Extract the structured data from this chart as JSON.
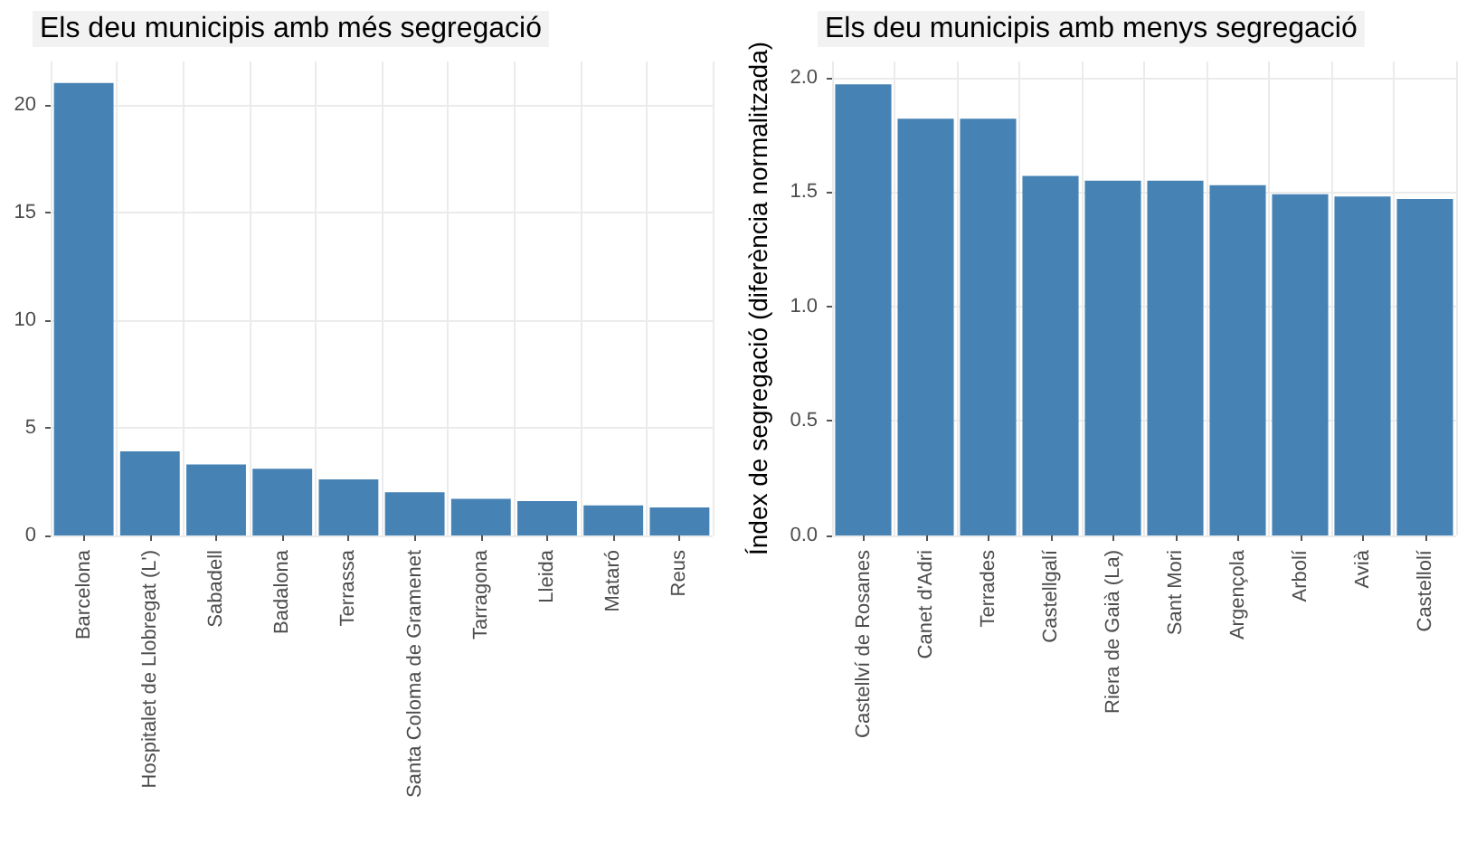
{
  "chart_data": [
    {
      "type": "bar",
      "title": "Els deu municipis amb més segregació",
      "categories": [
        "Barcelona",
        "Hospitalet de Llobregat (L')",
        "Sabadell",
        "Badalona",
        "Terrassa",
        "Santa Coloma de Gramenet",
        "Tarragona",
        "Lleida",
        "Mataró",
        "Reus"
      ],
      "values": [
        21,
        3.9,
        3.3,
        3.1,
        2.6,
        2.0,
        1.7,
        1.6,
        1.4,
        1.3
      ],
      "color": "#4682b4",
      "ylim": [
        0,
        22
      ],
      "yticks": [
        0,
        5,
        10,
        15,
        20
      ],
      "grid": true
    },
    {
      "type": "bar",
      "title": "Els deu municipis amb menys segregació",
      "ylabel": "Índex de segregació (diferència normalitzada)",
      "categories": [
        "Castellví de Rosanes",
        "Canet d'Adri",
        "Terrades",
        "Castellgalí",
        "Riera de Gaià (La)",
        "Sant Mori",
        "Argençola",
        "Arbolí",
        "Avià",
        "Castellolí"
      ],
      "values": [
        1.97,
        1.82,
        1.82,
        1.57,
        1.55,
        1.55,
        1.53,
        1.49,
        1.48,
        1.47
      ],
      "color": "#4682b4",
      "ylim": [
        0,
        2.07
      ],
      "yticks": [
        {
          "value": 0,
          "label": "0.0"
        },
        0.5,
        {
          "value": 1,
          "label": "1.0"
        },
        1.5,
        {
          "value": 2,
          "label": "2.0"
        }
      ],
      "grid": true
    }
  ]
}
